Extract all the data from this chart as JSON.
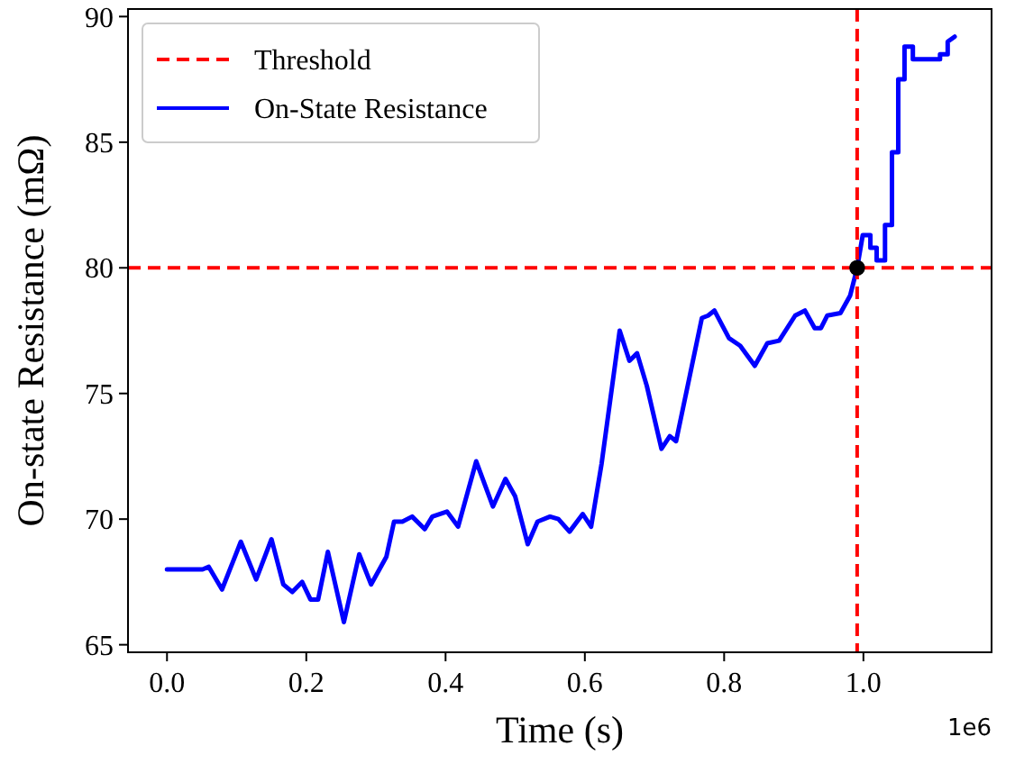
{
  "chart_data": {
    "type": "line",
    "xlabel": "Time (s)",
    "ylabel": "On-state Resistance (mΩ)",
    "xlim": [
      -0.056,
      1.184
    ],
    "ylim": [
      64.7,
      90.3
    ],
    "xticks": [
      {
        "value": 0,
        "label": "0.0"
      },
      0.2,
      0.4,
      0.6,
      0.8,
      {
        "value": 1,
        "label": "1.0"
      }
    ],
    "yticks": [
      65,
      70,
      75,
      80,
      85,
      90
    ],
    "annotations": [
      "1e6"
    ],
    "legend": "top left",
    "grid": false,
    "ref_lines": [
      {
        "axis": "y",
        "value": 80,
        "label": "Threshold",
        "color": "#ff0000",
        "line_style": "dashed"
      },
      {
        "axis": "x",
        "value": 0.991,
        "color": "#ff0000",
        "line_style": "dashed"
      }
    ],
    "series": [
      {
        "name": "On-State Resistance",
        "color": "#0000ff",
        "line_style": "solid",
        "marker": "none",
        "x": [
          0,
          0.051,
          0.06,
          0.079,
          0.106,
          0.128,
          0.15,
          0.167,
          0.18,
          0.194,
          0.206,
          0.217,
          0.231,
          0.254,
          0.276,
          0.293,
          0.315,
          0.326,
          0.338,
          0.352,
          0.37,
          0.381,
          0.402,
          0.418,
          0.444,
          0.468,
          0.486,
          0.5,
          0.518,
          0.532,
          0.55,
          0.562,
          0.578,
          0.597,
          0.609,
          0.624,
          0.65,
          0.664,
          0.675,
          0.689,
          0.71,
          0.722,
          0.731,
          0.768,
          0.777,
          0.786,
          0.807,
          0.823,
          0.844,
          0.862,
          0.879,
          0.902,
          0.916,
          0.93,
          0.939,
          0.948,
          0.967,
          0.981,
          0.991,
          0.999,
          1.01,
          1.01,
          1.019,
          1.019,
          1.031,
          1.031,
          1.041,
          1.041,
          1.05,
          1.05,
          1.059,
          1.059,
          1.071,
          1.071,
          1.092,
          1.11,
          1.11,
          1.121,
          1.121,
          1.131
        ],
        "values": [
          68.0,
          68.0,
          68.1,
          67.2,
          69.1,
          67.6,
          69.2,
          67.4,
          67.1,
          67.5,
          66.8,
          66.8,
          68.7,
          65.9,
          68.6,
          67.4,
          68.5,
          69.9,
          69.9,
          70.1,
          69.6,
          70.1,
          70.3,
          69.7,
          72.3,
          70.5,
          71.6,
          70.9,
          69.0,
          69.9,
          70.1,
          70.0,
          69.5,
          70.2,
          69.7,
          72.2,
          77.5,
          76.3,
          76.6,
          75.3,
          72.8,
          73.3,
          73.1,
          78.0,
          78.1,
          78.3,
          77.2,
          76.9,
          76.1,
          77.0,
          77.1,
          78.1,
          78.3,
          77.6,
          77.6,
          78.1,
          78.2,
          78.9,
          80.0,
          81.3,
          81.3,
          80.8,
          80.8,
          80.3,
          80.3,
          81.7,
          81.7,
          84.6,
          84.6,
          87.5,
          87.5,
          88.8,
          88.8,
          88.3,
          88.3,
          88.3,
          88.5,
          88.5,
          89.0,
          89.2
        ]
      },
      {
        "type": "scatter",
        "color": "#000000",
        "marker": "circle",
        "x": [
          0.991
        ],
        "values": [
          80.0
        ]
      }
    ]
  }
}
